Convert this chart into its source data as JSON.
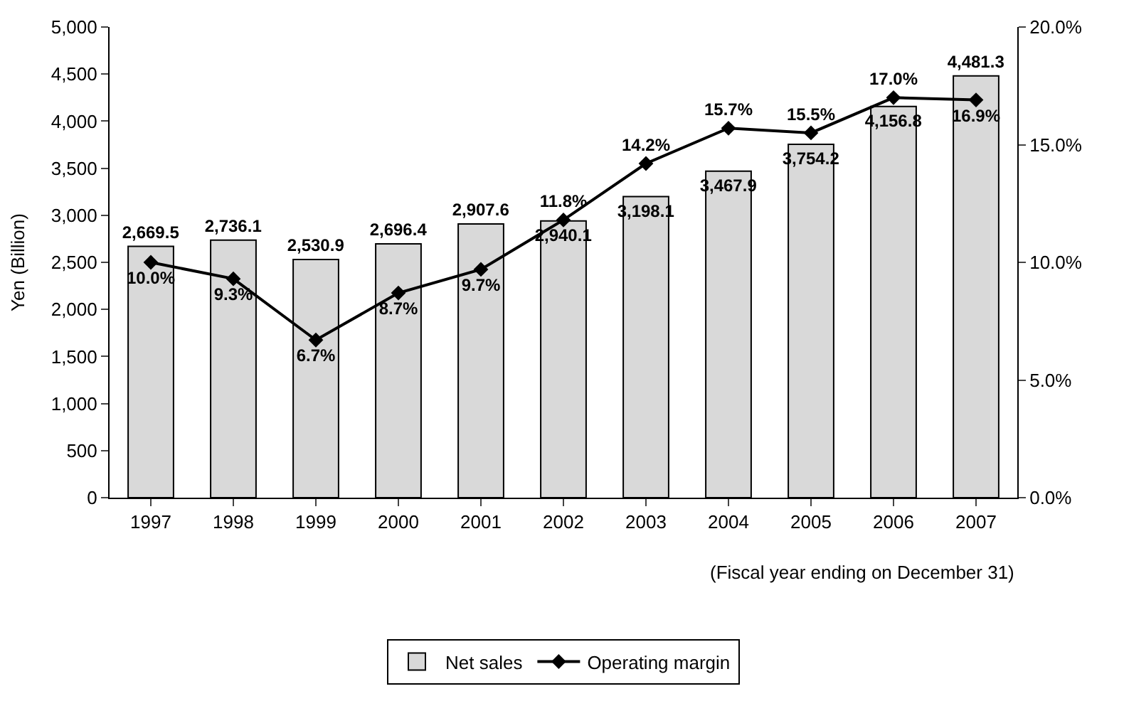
{
  "chart_data": {
    "type": "bar",
    "ylabel": "Yen (Billion)",
    "xlabel": "(Fiscal year ending on December 31)",
    "categories": [
      "1997",
      "1998",
      "1999",
      "2000",
      "2001",
      "2002",
      "2003",
      "2004",
      "2005",
      "2006",
      "2007"
    ],
    "series": [
      {
        "name": "Net sales",
        "color": "#d9d9d9",
        "values": [
          2669.5,
          2736.1,
          2530.9,
          2696.4,
          2907.6,
          2940.1,
          3198.1,
          3467.9,
          3754.2,
          4156.8,
          4481.3
        ],
        "value_labels": [
          "2,669.5",
          "2,736.1",
          "2,530.9",
          "2,696.4",
          "2,907.6",
          "2,940.1",
          "3,198.1",
          "3,467.9",
          "3,754.2",
          "4,156.8",
          "4,481.3"
        ]
      },
      {
        "name": "Operating margin",
        "type": "line",
        "axis": "y2",
        "color": "#000000",
        "marker": "diamond",
        "line_style": "solid",
        "values": [
          10.0,
          9.3,
          6.7,
          8.7,
          9.7,
          11.8,
          14.2,
          15.7,
          15.5,
          17.0,
          16.9
        ],
        "value_labels": [
          "10.0%",
          "9.3%",
          "6.7%",
          "8.7%",
          "9.7%",
          "11.8%",
          "14.2%",
          "15.7%",
          "15.5%",
          "17.0%",
          "16.9%"
        ]
      }
    ],
    "ylim": [
      0,
      5000
    ],
    "yticks": [
      0,
      500,
      {
        "value": 1000,
        "label": "1,000"
      },
      {
        "value": 1500,
        "label": "1,500"
      },
      {
        "value": 2000,
        "label": "2,000"
      },
      {
        "value": 2500,
        "label": "2,500"
      },
      {
        "value": 3000,
        "label": "3,000"
      },
      {
        "value": 3500,
        "label": "3,500"
      },
      {
        "value": 4000,
        "label": "4,000"
      },
      {
        "value": 4500,
        "label": "4,500"
      },
      {
        "value": 5000,
        "label": "5,000"
      }
    ],
    "y2lim": [
      0,
      20
    ],
    "y2ticks": [
      {
        "value": 0,
        "label": "0.0%"
      },
      {
        "value": 5,
        "label": "5.0%"
      },
      {
        "value": 10,
        "label": "10.0%"
      },
      {
        "value": 15,
        "label": "15.0%"
      },
      {
        "value": 20,
        "label": "20.0%"
      }
    ],
    "legend": "bottom"
  }
}
